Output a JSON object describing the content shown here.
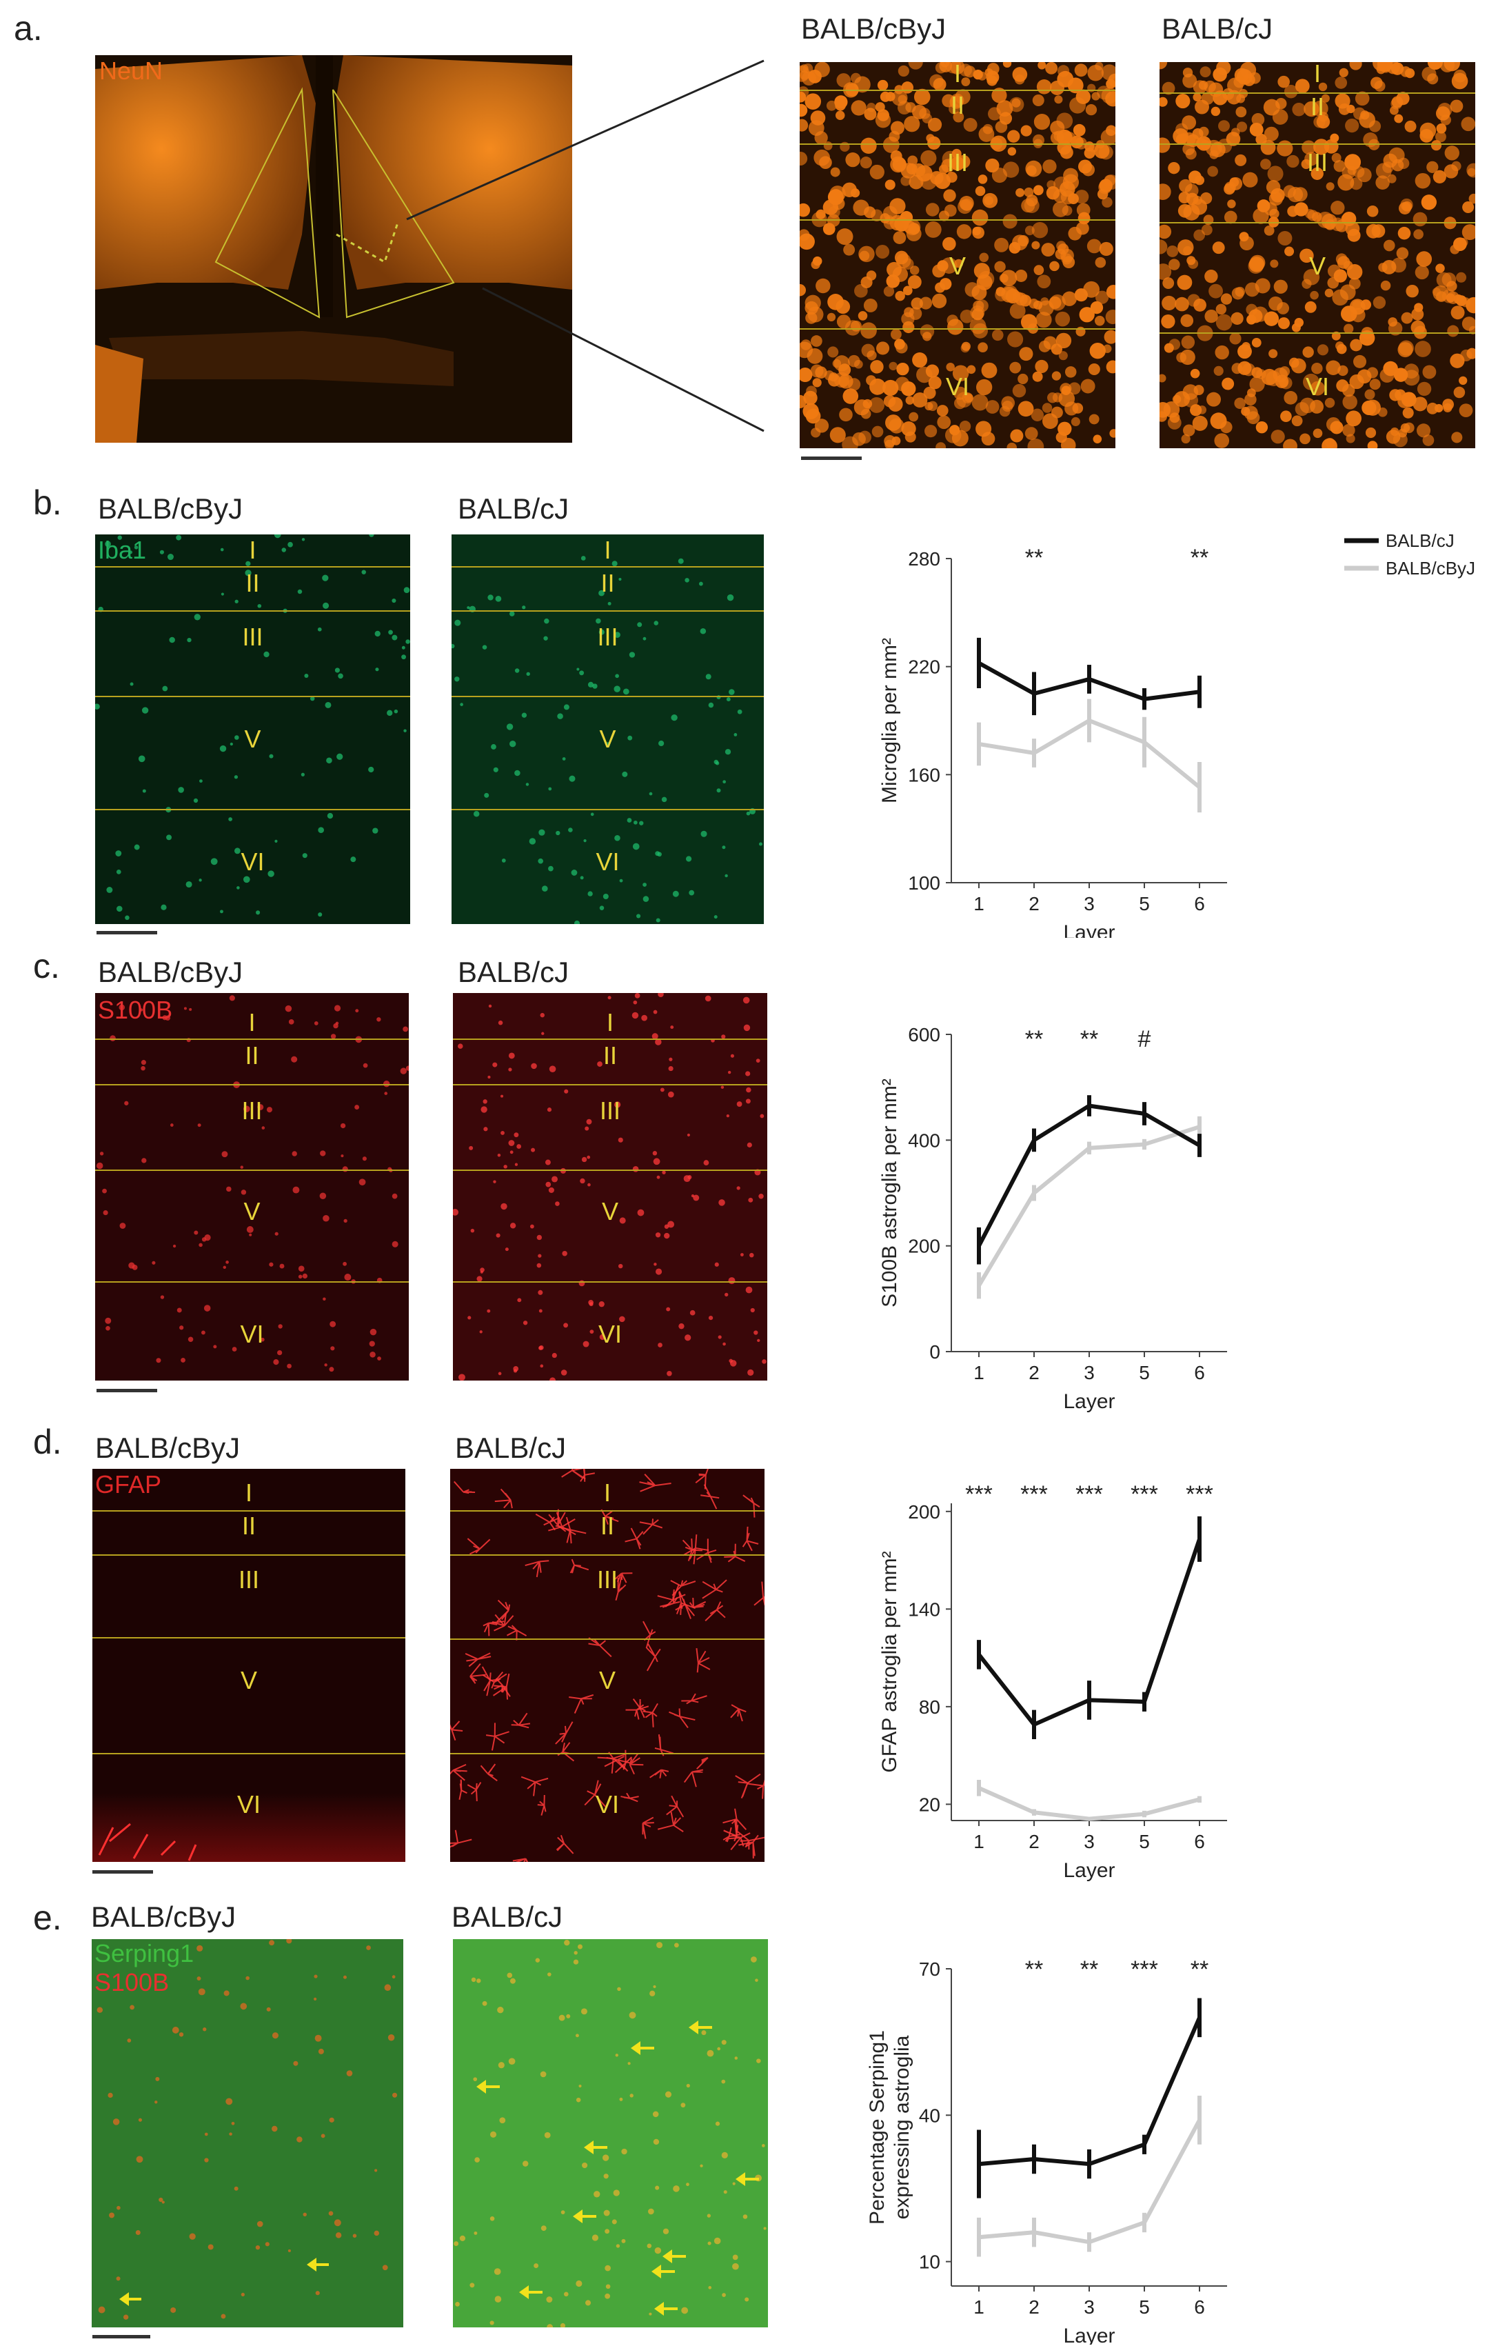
{
  "panels": {
    "a": {
      "letter": "a.",
      "overview_stain": "NeuN",
      "strain_left": "BALB/cByJ",
      "strain_right": "BALB/cJ",
      "layers": [
        "I",
        "II",
        "III",
        "V",
        "VI"
      ]
    },
    "b": {
      "letter": "b.",
      "strain_left": "BALB/cByJ",
      "strain_right": "BALB/cJ",
      "stain1": "Iba1",
      "layers": [
        "I",
        "II",
        "III",
        "V",
        "VI"
      ]
    },
    "c": {
      "letter": "c.",
      "strain_left": "BALB/cByJ",
      "strain_right": "BALB/cJ",
      "stain1": "S100B",
      "layers": [
        "I",
        "II",
        "III",
        "V",
        "VI"
      ]
    },
    "d": {
      "letter": "d.",
      "strain_left": "BALB/cByJ",
      "strain_right": "BALB/cJ",
      "stain1": "GFAP",
      "layers": [
        "I",
        "II",
        "III",
        "V",
        "VI"
      ]
    },
    "e": {
      "letter": "e.",
      "strain_left": "BALB/cByJ",
      "strain_right": "BALB/cJ",
      "stain1": "Serping1",
      "stain2": "S100B"
    }
  },
  "colors": {
    "neun": "#f07a12",
    "iba1": "#1db86a",
    "s100b": "#e83030",
    "gfap": "#e02828",
    "serping": "#3aa83a",
    "layer_line": "#b8a21e",
    "layer_text": "#e8d43a",
    "series_dark": "#111111",
    "series_light": "#cccccc"
  },
  "chart_data": [
    {
      "type": "line",
      "panel": "b",
      "x": [
        1,
        2,
        3,
        5,
        6
      ],
      "xlabel": "Layer",
      "ylabel": "Microglia per mm²",
      "ylim": [
        100,
        280
      ],
      "yticks": [
        100,
        160,
        220,
        280
      ],
      "legend": [
        "BALB/cJ",
        "BALB/cByJ"
      ],
      "legend_position": "top-right",
      "series": [
        {
          "name": "BALB/cJ",
          "color": "#111111",
          "values": [
            222,
            205,
            213,
            202,
            206
          ],
          "errors": [
            14,
            12,
            8,
            6,
            9
          ]
        },
        {
          "name": "BALB/cByJ",
          "color": "#cccccc",
          "values": [
            177,
            172,
            190,
            178,
            153
          ],
          "errors": [
            12,
            8,
            12,
            14,
            14
          ]
        }
      ],
      "annotations": [
        {
          "x": 2,
          "text": "**"
        },
        {
          "x": 6,
          "text": "**"
        }
      ]
    },
    {
      "type": "line",
      "panel": "c",
      "x": [
        1,
        2,
        3,
        5,
        6
      ],
      "xlabel": "Layer",
      "ylabel": "S100B astroglia per mm²",
      "ylim": [
        0,
        600
      ],
      "yticks": [
        0,
        200,
        400,
        600
      ],
      "series": [
        {
          "name": "BALB/cJ",
          "color": "#111111",
          "values": [
            200,
            400,
            465,
            450,
            390
          ],
          "errors": [
            35,
            22,
            20,
            22,
            22
          ]
        },
        {
          "name": "BALB/cByJ",
          "color": "#cccccc",
          "values": [
            125,
            300,
            385,
            392,
            425
          ],
          "errors": [
            25,
            15,
            12,
            10,
            20
          ]
        }
      ],
      "annotations": [
        {
          "x": 2,
          "text": "**"
        },
        {
          "x": 3,
          "text": "**"
        },
        {
          "x": 5,
          "text": "#"
        }
      ]
    },
    {
      "type": "line",
      "panel": "d",
      "x": [
        1,
        2,
        3,
        5,
        6
      ],
      "xlabel": "Layer",
      "ylabel": "GFAP astroglia per mm²",
      "ylim": [
        10,
        205
      ],
      "yticks": [
        20,
        80,
        140,
        200
      ],
      "series": [
        {
          "name": "BALB/cJ",
          "color": "#111111",
          "values": [
            112,
            69,
            84,
            83,
            183
          ],
          "errors": [
            9,
            9,
            12,
            6,
            14
          ]
        },
        {
          "name": "BALB/cByJ",
          "color": "#cccccc",
          "values": [
            30,
            15,
            11,
            14,
            23
          ],
          "errors": [
            5,
            2,
            1,
            2,
            2
          ]
        }
      ],
      "annotations": [
        {
          "x": 1,
          "text": "***"
        },
        {
          "x": 2,
          "text": "***"
        },
        {
          "x": 3,
          "text": "***"
        },
        {
          "x": 5,
          "text": "***"
        },
        {
          "x": 6,
          "text": "***"
        }
      ]
    },
    {
      "type": "line",
      "panel": "e",
      "x": [
        1,
        2,
        3,
        5,
        6
      ],
      "xlabel": "Layer",
      "ylabel": "Percentage Serping1 expressing astroglia",
      "ylim": [
        5,
        70
      ],
      "yticks": [
        10,
        40,
        70
      ],
      "series": [
        {
          "name": "BALB/cJ",
          "color": "#111111",
          "values": [
            30,
            31,
            30,
            34,
            60
          ],
          "errors": [
            7,
            3,
            3,
            2,
            4
          ]
        },
        {
          "name": "BALB/cByJ",
          "color": "#cccccc",
          "values": [
            15,
            16,
            14,
            18,
            39
          ],
          "errors": [
            4,
            3,
            2,
            2,
            5
          ]
        }
      ],
      "annotations": [
        {
          "x": 2,
          "text": "**"
        },
        {
          "x": 3,
          "text": "**"
        },
        {
          "x": 5,
          "text": "***"
        },
        {
          "x": 6,
          "text": "**"
        }
      ]
    }
  ]
}
